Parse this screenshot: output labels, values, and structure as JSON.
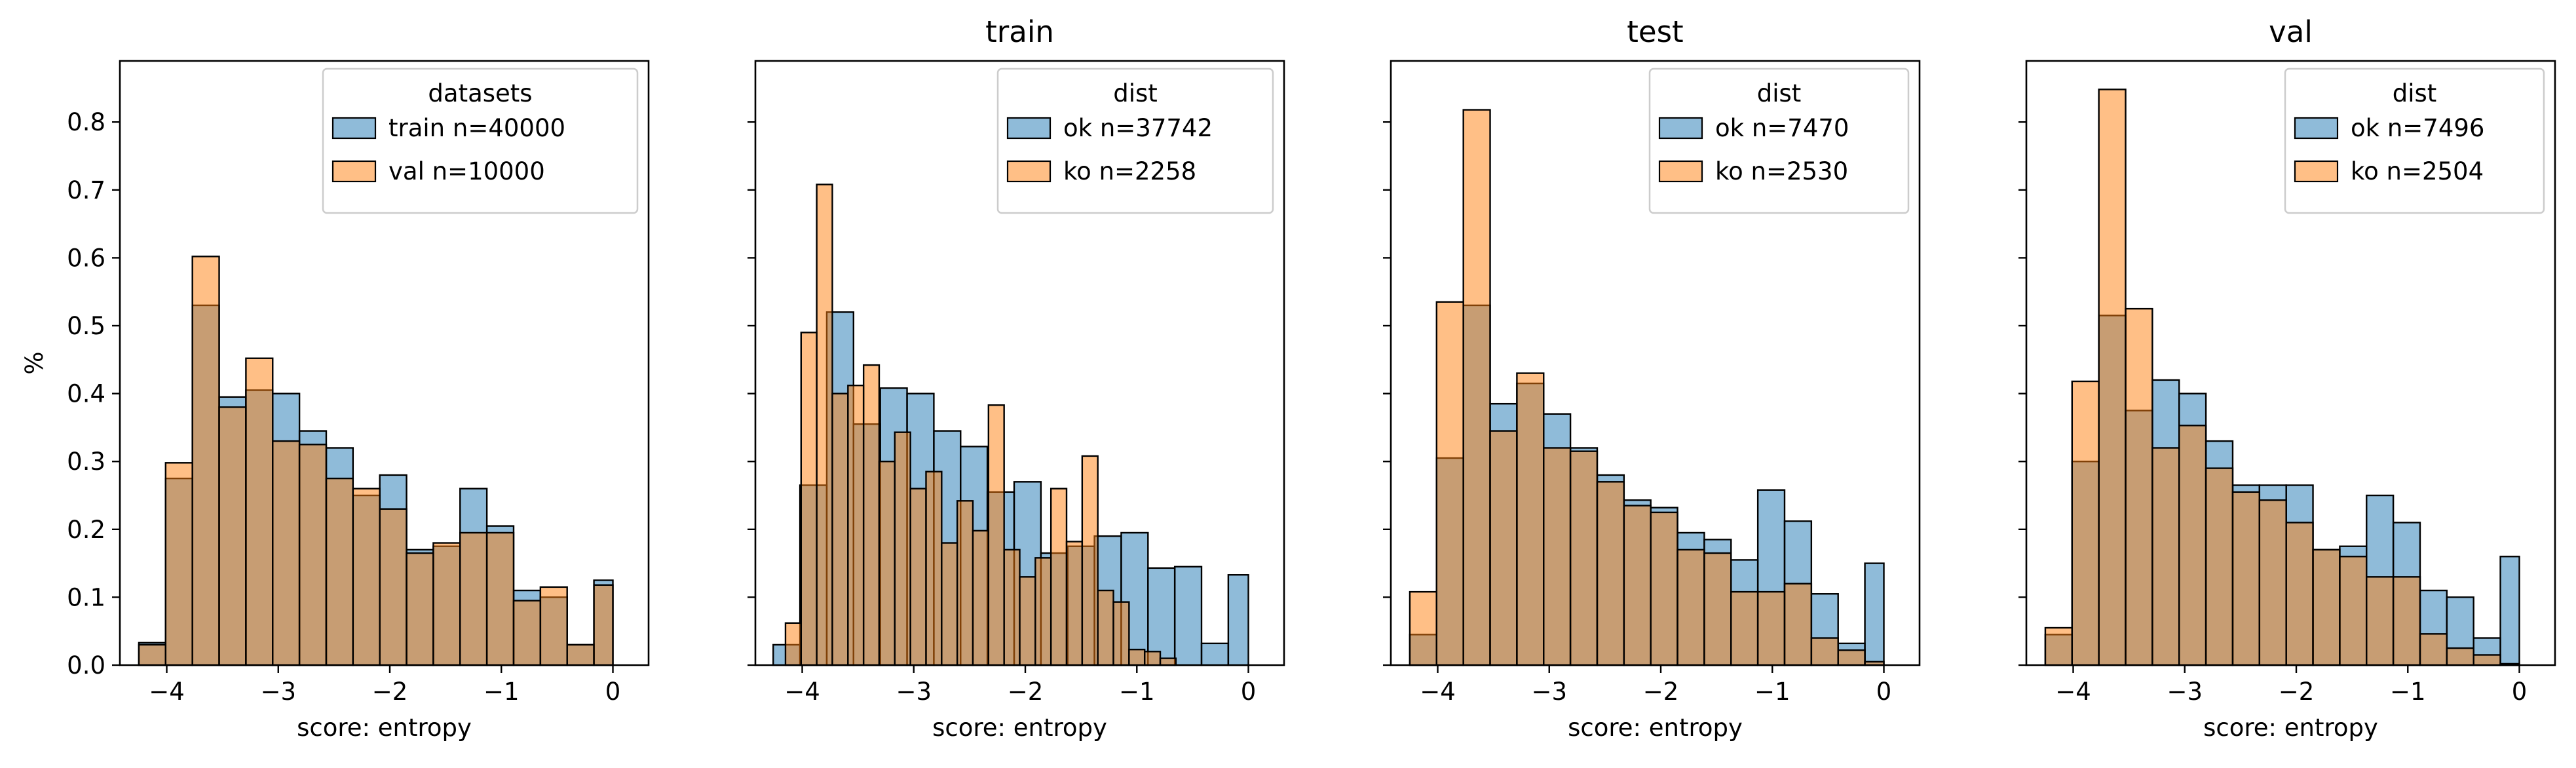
{
  "colors": {
    "blue": "#1f77b4",
    "orange": "#ff7f0e"
  },
  "chart_data": [
    {
      "type": "bar",
      "title": "",
      "xlabel": "score: entropy",
      "ylabel": "%",
      "xlim": [
        -4.42,
        0.32
      ],
      "ylim": [
        0,
        0.89
      ],
      "xticks": [
        "−4",
        "−3",
        "−2",
        "−1",
        "0"
      ],
      "yticks": [
        "0.0",
        "0.1",
        "0.2",
        "0.3",
        "0.4",
        "0.5",
        "0.6",
        "0.7",
        "0.8"
      ],
      "grid": false,
      "legend": {
        "title": "datasets",
        "position": "top-right"
      },
      "series": [
        {
          "name": "train n=40000",
          "color": "blue",
          "bin_edges": [
            -4.25,
            -4.01,
            -3.77,
            -3.53,
            -3.29,
            -3.05,
            -2.81,
            -2.57,
            -2.33,
            -2.09,
            -1.85,
            -1.61,
            -1.37,
            -1.13,
            -0.89,
            -0.65,
            -0.41,
            -0.17,
            0.0
          ],
          "values": [
            0.033,
            0.275,
            0.53,
            0.395,
            0.405,
            0.4,
            0.345,
            0.32,
            0.25,
            0.28,
            0.17,
            0.175,
            0.26,
            0.205,
            0.11,
            0.1,
            0.03,
            0.125
          ]
        },
        {
          "name": "val n=10000",
          "color": "orange",
          "bin_edges": [
            -4.25,
            -4.01,
            -3.77,
            -3.53,
            -3.29,
            -3.05,
            -2.81,
            -2.57,
            -2.33,
            -2.09,
            -1.85,
            -1.61,
            -1.37,
            -1.13,
            -0.89,
            -0.65,
            -0.41,
            -0.17,
            0.0
          ],
          "values": [
            0.03,
            0.298,
            0.602,
            0.38,
            0.452,
            0.33,
            0.325,
            0.275,
            0.26,
            0.23,
            0.165,
            0.18,
            0.195,
            0.195,
            0.095,
            0.115,
            0.03,
            0.118
          ]
        }
      ]
    },
    {
      "type": "bar",
      "title": "train",
      "xlabel": "score: entropy",
      "ylabel": "",
      "xlim": [
        -4.42,
        0.32
      ],
      "ylim": [
        0,
        0.89
      ],
      "xticks": [
        "−4",
        "−3",
        "−2",
        "−1",
        "0"
      ],
      "grid": false,
      "legend": {
        "title": "dist",
        "position": "top-right"
      },
      "series": [
        {
          "name": "ok n=37742",
          "color": "blue",
          "bin_edges": [
            -4.26,
            -4.02,
            -3.78,
            -3.54,
            -3.3,
            -3.06,
            -2.82,
            -2.58,
            -2.34,
            -2.1,
            -1.86,
            -1.62,
            -1.38,
            -1.14,
            -0.9,
            -0.66,
            -0.42,
            -0.18,
            0.0
          ],
          "values": [
            0.03,
            0.265,
            0.52,
            0.355,
            0.408,
            0.4,
            0.345,
            0.322,
            0.255,
            0.27,
            0.165,
            0.175,
            0.19,
            0.195,
            0.143,
            0.145,
            0.032,
            0.133
          ]
        },
        {
          "name": "ko n=2258",
          "color": "orange",
          "bin_edges": [
            -4.15,
            -4.01,
            -3.87,
            -3.73,
            -3.59,
            -3.45,
            -3.31,
            -3.17,
            -3.03,
            -2.89,
            -2.75,
            -2.61,
            -2.47,
            -2.33,
            -2.19,
            -2.05,
            -1.91,
            -1.77,
            -1.63,
            -1.49,
            -1.35,
            -1.21,
            -1.07,
            -0.93,
            -0.79,
            -0.65
          ],
          "values": [
            0.062,
            0.49,
            0.708,
            0.4,
            0.412,
            0.442,
            0.3,
            0.343,
            0.26,
            0.285,
            0.18,
            0.242,
            0.198,
            0.383,
            0.17,
            0.13,
            0.158,
            0.26,
            0.182,
            0.308,
            0.11,
            0.093,
            0.023,
            0.02,
            0.01,
            0.0
          ]
        }
      ]
    },
    {
      "type": "bar",
      "title": "test",
      "xlabel": "score: entropy",
      "ylabel": "",
      "xlim": [
        -4.42,
        0.32
      ],
      "ylim": [
        0,
        0.89
      ],
      "xticks": [
        "−4",
        "−3",
        "−2",
        "−1",
        "0"
      ],
      "grid": false,
      "legend": {
        "title": "dist",
        "position": "top-right"
      },
      "series": [
        {
          "name": "ok n=7470",
          "color": "blue",
          "bin_edges": [
            -4.25,
            -4.01,
            -3.77,
            -3.53,
            -3.29,
            -3.05,
            -2.81,
            -2.57,
            -2.33,
            -2.09,
            -1.85,
            -1.61,
            -1.37,
            -1.13,
            -0.89,
            -0.65,
            -0.41,
            -0.17,
            0.0
          ],
          "values": [
            0.045,
            0.305,
            0.53,
            0.385,
            0.415,
            0.37,
            0.32,
            0.28,
            0.243,
            0.232,
            0.195,
            0.185,
            0.155,
            0.258,
            0.212,
            0.105,
            0.032,
            0.15
          ]
        },
        {
          "name": "ko n=2530",
          "color": "orange",
          "bin_edges": [
            -4.25,
            -4.01,
            -3.77,
            -3.53,
            -3.29,
            -3.05,
            -2.81,
            -2.57,
            -2.33,
            -2.09,
            -1.85,
            -1.61,
            -1.37,
            -1.13,
            -0.89,
            -0.65,
            -0.41,
            -0.17,
            0.0
          ],
          "values": [
            0.108,
            0.535,
            0.818,
            0.345,
            0.43,
            0.32,
            0.315,
            0.27,
            0.235,
            0.225,
            0.17,
            0.165,
            0.108,
            0.108,
            0.12,
            0.04,
            0.022,
            0.005
          ]
        }
      ]
    },
    {
      "type": "bar",
      "title": "val",
      "xlabel": "score: entropy",
      "ylabel": "",
      "xlim": [
        -4.42,
        0.32
      ],
      "ylim": [
        0,
        0.89
      ],
      "xticks": [
        "−4",
        "−3",
        "−2",
        "−1",
        "0"
      ],
      "grid": false,
      "legend": {
        "title": "dist",
        "position": "top-right"
      },
      "series": [
        {
          "name": "ok n=7496",
          "color": "blue",
          "bin_edges": [
            -4.25,
            -4.01,
            -3.77,
            -3.53,
            -3.29,
            -3.05,
            -2.81,
            -2.57,
            -2.33,
            -2.09,
            -1.85,
            -1.61,
            -1.37,
            -1.13,
            -0.89,
            -0.65,
            -0.41,
            -0.17,
            0.0
          ],
          "values": [
            0.045,
            0.3,
            0.515,
            0.375,
            0.42,
            0.4,
            0.33,
            0.265,
            0.265,
            0.265,
            0.17,
            0.175,
            0.25,
            0.21,
            0.11,
            0.1,
            0.04,
            0.16
          ]
        },
        {
          "name": "ko n=2504",
          "color": "orange",
          "bin_edges": [
            -4.25,
            -4.01,
            -3.77,
            -3.53,
            -3.29,
            -3.05,
            -2.81,
            -2.57,
            -2.33,
            -2.09,
            -1.85,
            -1.61,
            -1.37,
            -1.13,
            -0.89,
            -0.65,
            -0.41,
            -0.17,
            0.0
          ],
          "values": [
            0.055,
            0.418,
            0.848,
            0.525,
            0.32,
            0.353,
            0.29,
            0.255,
            0.243,
            0.21,
            0.17,
            0.16,
            0.13,
            0.13,
            0.046,
            0.025,
            0.015,
            0.002
          ]
        }
      ]
    }
  ]
}
